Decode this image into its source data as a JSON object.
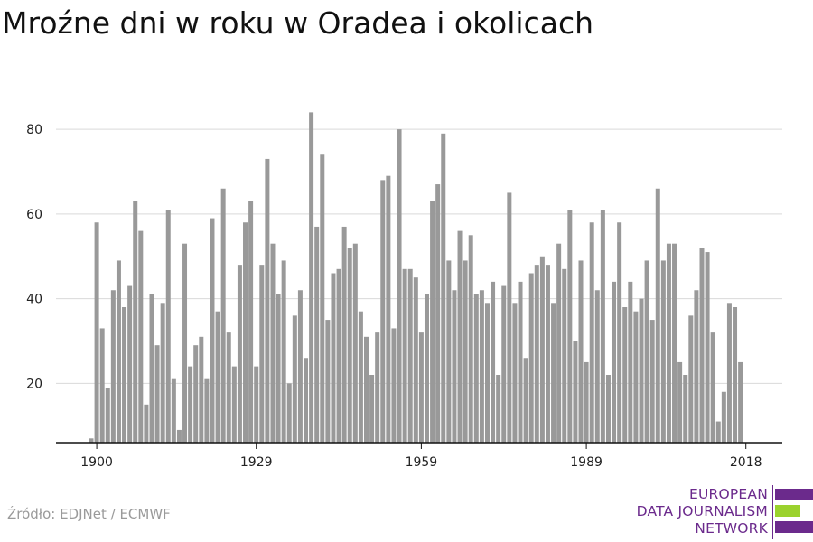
{
  "title": "Mroźne dni w roku w Oradea i okolicach",
  "source": "Źródło: EDJNet / ECMWF",
  "logo": {
    "line1": "EUROPEAN",
    "line2": "DATA JOURNALISM",
    "line3": "NETWORK",
    "colors": {
      "purple": "#6b2a8c",
      "green": "#9bd22e"
    }
  },
  "colors": {
    "bar": "#999999",
    "grid": "#d9d9d9",
    "axis": "#111111"
  },
  "chart_data": {
    "type": "bar",
    "title": "Mroźne dni w roku w Oradea i okolicach",
    "xlabel": "",
    "ylabel": "",
    "ylim": [
      6,
      86
    ],
    "yticks": [
      20,
      40,
      60,
      80
    ],
    "xticks": [
      1900,
      1929,
      1959,
      1989,
      2018
    ],
    "grid": true,
    "start_year": 1899,
    "values": [
      7,
      58,
      33,
      19,
      42,
      49,
      38,
      43,
      63,
      56,
      15,
      41,
      29,
      39,
      61,
      21,
      9,
      53,
      24,
      29,
      31,
      21,
      59,
      37,
      66,
      32,
      24,
      48,
      58,
      63,
      24,
      48,
      73,
      53,
      41,
      49,
      20,
      36,
      42,
      26,
      84,
      57,
      74,
      35,
      46,
      47,
      57,
      52,
      53,
      37,
      31,
      22,
      32,
      68,
      69,
      33,
      80,
      47,
      47,
      45,
      32,
      41,
      63,
      67,
      79,
      49,
      42,
      56,
      49,
      55,
      41,
      42,
      39,
      44,
      22,
      43,
      65,
      39,
      44,
      26,
      46,
      48,
      50,
      48,
      39,
      53,
      47,
      61,
      30,
      49,
      25,
      58,
      42,
      61,
      22,
      44,
      58,
      38,
      44,
      37,
      40,
      49,
      35,
      66,
      49,
      53,
      53,
      25,
      22,
      36,
      42,
      52,
      51,
      32,
      11,
      18,
      39,
      38,
      25
    ]
  }
}
